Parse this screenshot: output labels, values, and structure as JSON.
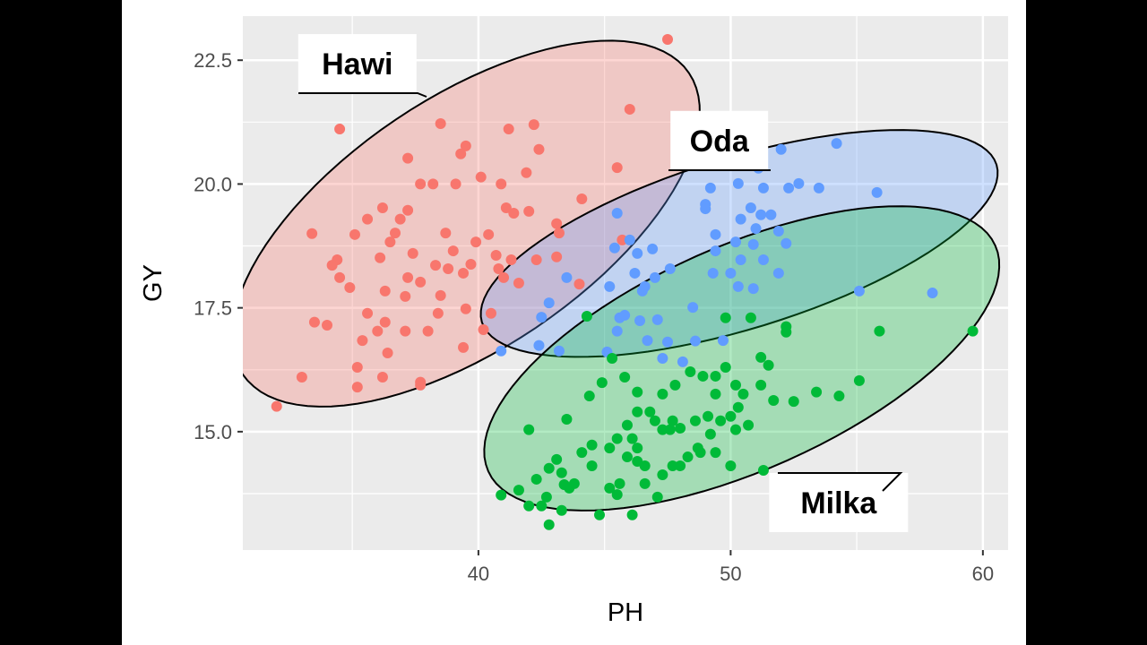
{
  "chart_data": {
    "type": "scatter",
    "xlabel": "PH",
    "ylabel": "GY",
    "xlim": [
      30.66,
      61.0
    ],
    "ylim": [
      12.61,
      23.39
    ],
    "x_ticks": [
      "40",
      "50",
      "60"
    ],
    "x_tick_values": [
      40,
      50,
      60
    ],
    "y_ticks": [
      "15.0",
      "17.5",
      "20.0",
      "22.5"
    ],
    "y_tick_values": [
      15.0,
      17.5,
      20.0,
      22.5
    ],
    "grid": true,
    "legend": "none",
    "panel_background": "#EBEBEB",
    "series": [
      {
        "name": "Hawi",
        "color": "#F8766D",
        "label_at": [
          35.2,
          22.43
        ],
        "ellipse": {
          "center": [
            39.5,
            19.2
          ],
          "axis_a": [
            8.85,
            3.04
          ],
          "axis_b": [
            2.78,
            -2.1
          ]
        },
        "points": [
          [
            47.5,
            22.92
          ],
          [
            46.0,
            21.51
          ],
          [
            45.5,
            20.33
          ],
          [
            42.2,
            21.2
          ],
          [
            41.2,
            21.11
          ],
          [
            38.5,
            21.22
          ],
          [
            39.5,
            20.77
          ],
          [
            39.3,
            20.61
          ],
          [
            37.2,
            20.52
          ],
          [
            34.5,
            21.11
          ],
          [
            33.4,
            19.0
          ],
          [
            32.0,
            15.51
          ],
          [
            33.0,
            16.1
          ],
          [
            35.2,
            15.9
          ],
          [
            36.2,
            16.1
          ],
          [
            37.7,
            16.0
          ],
          [
            34.4,
            18.47
          ],
          [
            34.9,
            17.91
          ],
          [
            35.1,
            18.98
          ],
          [
            34.2,
            18.36
          ],
          [
            35.6,
            19.29
          ],
          [
            36.2,
            19.52
          ],
          [
            36.9,
            19.29
          ],
          [
            37.7,
            20.0
          ],
          [
            38.2,
            20.0
          ],
          [
            39.1,
            20.0
          ],
          [
            40.1,
            20.14
          ],
          [
            40.9,
            20.0
          ],
          [
            41.9,
            20.23
          ],
          [
            42.4,
            20.7
          ],
          [
            40.4,
            18.98
          ],
          [
            41.4,
            19.41
          ],
          [
            41.1,
            19.52
          ],
          [
            42.0,
            19.45
          ],
          [
            43.1,
            19.2
          ],
          [
            43.2,
            19.01
          ],
          [
            44.1,
            19.7
          ],
          [
            44.0,
            17.98
          ],
          [
            43.1,
            18.53
          ],
          [
            42.3,
            18.47
          ],
          [
            41.6,
            18.0
          ],
          [
            40.8,
            18.29
          ],
          [
            39.4,
            18.2
          ],
          [
            38.5,
            17.75
          ],
          [
            37.2,
            18.11
          ],
          [
            36.3,
            17.84
          ],
          [
            35.6,
            17.39
          ],
          [
            36.0,
            17.03
          ],
          [
            35.4,
            16.84
          ],
          [
            36.4,
            16.59
          ],
          [
            37.1,
            17.03
          ],
          [
            38.0,
            17.03
          ],
          [
            39.4,
            16.7
          ],
          [
            40.2,
            17.06
          ],
          [
            40.5,
            17.39
          ],
          [
            37.1,
            17.73
          ],
          [
            37.4,
            18.6
          ],
          [
            38.3,
            18.36
          ],
          [
            38.7,
            19.01
          ],
          [
            39.0,
            18.65
          ],
          [
            39.7,
            18.38
          ],
          [
            36.5,
            18.83
          ],
          [
            36.1,
            18.51
          ],
          [
            34.5,
            18.11
          ],
          [
            34.0,
            17.15
          ],
          [
            33.5,
            17.21
          ],
          [
            35.2,
            16.3
          ],
          [
            36.3,
            17.21
          ],
          [
            38.4,
            17.39
          ],
          [
            36.7,
            19.01
          ],
          [
            37.7,
            15.94
          ],
          [
            39.9,
            18.83
          ],
          [
            40.7,
            18.56
          ],
          [
            41.3,
            18.47
          ],
          [
            41.0,
            18.11
          ],
          [
            45.7,
            18.87
          ],
          [
            39.5,
            17.48
          ],
          [
            38.8,
            18.29
          ],
          [
            37.7,
            18.02
          ],
          [
            37.2,
            19.47
          ]
        ]
      },
      {
        "name": "Oda",
        "color": "#619CFF",
        "label_at": [
          49.55,
          20.88
        ],
        "ellipse": {
          "center": [
            50.34,
            18.8
          ],
          "axis_a": [
            10.2,
            1.59
          ],
          "axis_b": [
            0.99,
            -1.65
          ]
        },
        "points": [
          [
            54.2,
            20.82
          ],
          [
            52.0,
            20.7
          ],
          [
            51.1,
            20.32
          ],
          [
            49.2,
            19.92
          ],
          [
            50.3,
            20.01
          ],
          [
            51.3,
            19.92
          ],
          [
            52.3,
            19.92
          ],
          [
            52.7,
            20.01
          ],
          [
            53.5,
            19.92
          ],
          [
            55.8,
            19.83
          ],
          [
            55.1,
            17.84
          ],
          [
            58.0,
            17.8
          ],
          [
            45.5,
            19.41
          ],
          [
            46.0,
            18.87
          ],
          [
            45.4,
            18.71
          ],
          [
            46.3,
            18.6
          ],
          [
            46.9,
            18.69
          ],
          [
            47.6,
            18.29
          ],
          [
            46.2,
            18.2
          ],
          [
            46.5,
            17.84
          ],
          [
            46.6,
            17.93
          ],
          [
            47.0,
            18.11
          ],
          [
            49.0,
            19.59
          ],
          [
            49.0,
            19.5
          ],
          [
            49.4,
            18.98
          ],
          [
            50.2,
            18.83
          ],
          [
            50.4,
            19.29
          ],
          [
            50.8,
            19.52
          ],
          [
            51.2,
            19.38
          ],
          [
            51.0,
            19.1
          ],
          [
            51.6,
            19.38
          ],
          [
            51.9,
            19.05
          ],
          [
            52.2,
            18.8
          ],
          [
            50.9,
            18.78
          ],
          [
            50.4,
            18.47
          ],
          [
            50.0,
            18.2
          ],
          [
            49.3,
            18.2
          ],
          [
            49.4,
            18.65
          ],
          [
            50.3,
            17.93
          ],
          [
            50.9,
            17.89
          ],
          [
            51.9,
            18.2
          ],
          [
            51.3,
            18.47
          ],
          [
            45.2,
            17.93
          ],
          [
            45.6,
            17.3
          ],
          [
            45.5,
            17.03
          ],
          [
            45.8,
            17.35
          ],
          [
            46.7,
            16.84
          ],
          [
            47.5,
            16.81
          ],
          [
            48.5,
            17.51
          ],
          [
            47.1,
            17.26
          ],
          [
            46.4,
            17.24
          ],
          [
            48.6,
            16.83
          ],
          [
            48.1,
            16.41
          ],
          [
            49.7,
            16.84
          ],
          [
            42.8,
            17.6
          ],
          [
            43.5,
            18.11
          ],
          [
            42.5,
            17.31
          ],
          [
            42.4,
            16.74
          ],
          [
            43.2,
            16.63
          ],
          [
            40.9,
            16.63
          ],
          [
            45.1,
            16.61
          ],
          [
            47.3,
            16.48
          ]
        ]
      },
      {
        "name": "Milka",
        "color": "#00BA38",
        "label_at": [
          54.28,
          13.57
        ],
        "ellipse": {
          "center": [
            50.44,
            16.48
          ],
          "axis_a": [
            10.05,
            2.28
          ],
          "axis_b": [
            1.81,
            -2.06
          ]
        },
        "points": [
          [
            59.6,
            17.03
          ],
          [
            55.9,
            17.03
          ],
          [
            52.2,
            17.12
          ],
          [
            52.2,
            17.01
          ],
          [
            50.8,
            17.3
          ],
          [
            49.8,
            17.3
          ],
          [
            51.2,
            16.5
          ],
          [
            51.5,
            16.34
          ],
          [
            52.5,
            15.61
          ],
          [
            53.4,
            15.8
          ],
          [
            54.3,
            15.72
          ],
          [
            55.1,
            16.03
          ],
          [
            51.2,
            15.94
          ],
          [
            50.5,
            15.76
          ],
          [
            49.8,
            16.3
          ],
          [
            49.4,
            16.12
          ],
          [
            48.9,
            16.12
          ],
          [
            48.4,
            16.21
          ],
          [
            47.8,
            15.94
          ],
          [
            47.3,
            15.76
          ],
          [
            46.3,
            15.8
          ],
          [
            46.3,
            15.4
          ],
          [
            46.8,
            15.4
          ],
          [
            47.0,
            15.22
          ],
          [
            47.3,
            15.04
          ],
          [
            47.6,
            15.04
          ],
          [
            48.0,
            15.07
          ],
          [
            48.6,
            15.22
          ],
          [
            49.1,
            15.31
          ],
          [
            49.6,
            15.22
          ],
          [
            50.2,
            15.04
          ],
          [
            50.7,
            15.13
          ],
          [
            50.3,
            15.49
          ],
          [
            50.0,
            15.31
          ],
          [
            49.4,
            15.76
          ],
          [
            50.0,
            14.31
          ],
          [
            51.3,
            14.22
          ],
          [
            48.8,
            14.58
          ],
          [
            49.2,
            14.95
          ],
          [
            48.3,
            14.49
          ],
          [
            47.7,
            14.31
          ],
          [
            47.3,
            14.13
          ],
          [
            46.6,
            14.31
          ],
          [
            45.9,
            14.49
          ],
          [
            46.3,
            14.67
          ],
          [
            45.5,
            14.86
          ],
          [
            45.2,
            14.67
          ],
          [
            44.5,
            14.73
          ],
          [
            44.1,
            14.58
          ],
          [
            43.5,
            15.25
          ],
          [
            44.4,
            15.72
          ],
          [
            44.9,
            15.99
          ],
          [
            45.3,
            16.48
          ],
          [
            44.3,
            17.33
          ],
          [
            45.8,
            16.1
          ],
          [
            45.9,
            15.13
          ],
          [
            46.1,
            14.86
          ],
          [
            46.6,
            13.95
          ],
          [
            47.1,
            13.68
          ],
          [
            46.1,
            13.32
          ],
          [
            44.8,
            13.32
          ],
          [
            45.5,
            13.73
          ],
          [
            46.3,
            14.4
          ],
          [
            42.0,
            15.04
          ],
          [
            42.3,
            14.04
          ],
          [
            42.8,
            14.26
          ],
          [
            43.1,
            14.44
          ],
          [
            43.3,
            14.17
          ],
          [
            43.4,
            13.93
          ],
          [
            43.6,
            13.86
          ],
          [
            42.7,
            13.68
          ],
          [
            42.5,
            13.5
          ],
          [
            42.0,
            13.5
          ],
          [
            41.6,
            13.82
          ],
          [
            40.9,
            13.72
          ],
          [
            42.8,
            13.12
          ],
          [
            43.3,
            13.41
          ],
          [
            43.8,
            13.95
          ],
          [
            44.5,
            14.31
          ],
          [
            45.2,
            13.86
          ],
          [
            45.6,
            13.95
          ],
          [
            48.0,
            14.31
          ],
          [
            48.7,
            14.67
          ],
          [
            49.4,
            14.58
          ],
          [
            47.7,
            15.22
          ],
          [
            50.2,
            15.94
          ],
          [
            51.7,
            15.63
          ]
        ]
      }
    ]
  }
}
